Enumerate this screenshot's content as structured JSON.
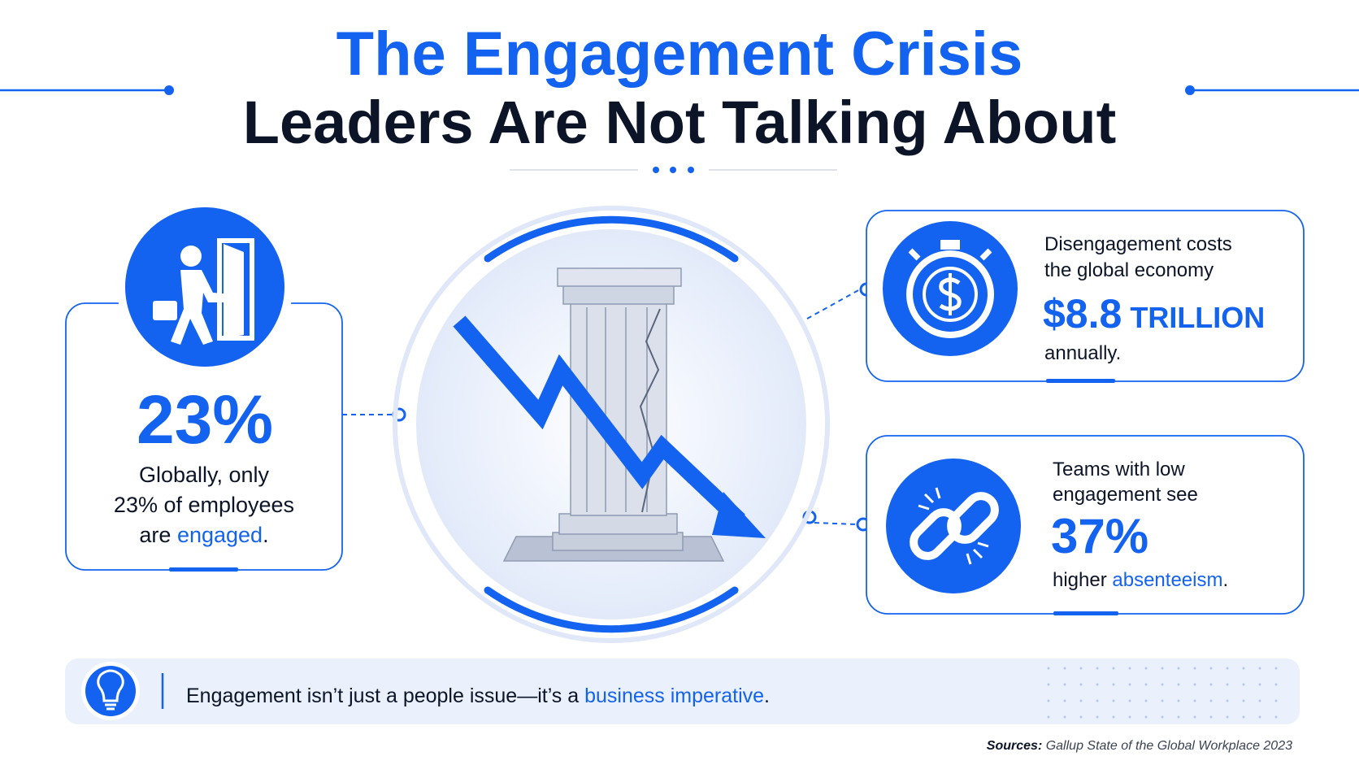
{
  "header": {
    "title_line1": "The Engagement Crisis",
    "title_line2": "Leaders Are Not Talking About"
  },
  "left_stat": {
    "value": "23%",
    "lines": [
      "Globally, only",
      "23% of employees"
    ],
    "last_line_start": "are ",
    "highlight": "engaged",
    "end": "."
  },
  "cost_stat": {
    "lines": [
      "Disengagement costs",
      "the global economy"
    ],
    "value": "$8.8",
    "unit": "TRILLION",
    "after": "annually."
  },
  "absence_stat": {
    "lines": [
      "Teams with low",
      "engagement see"
    ],
    "value": "37%",
    "last_line_start": "higher ",
    "highlight": "absenteeism",
    "end": "."
  },
  "banner": {
    "text": "Engagement isn’t just a people issue—it’s a ",
    "highlight": "business imperative",
    "end": "."
  },
  "sources": {
    "label": "Sources:",
    "text": " Gallup State of the Global Workplace 2023"
  }
}
